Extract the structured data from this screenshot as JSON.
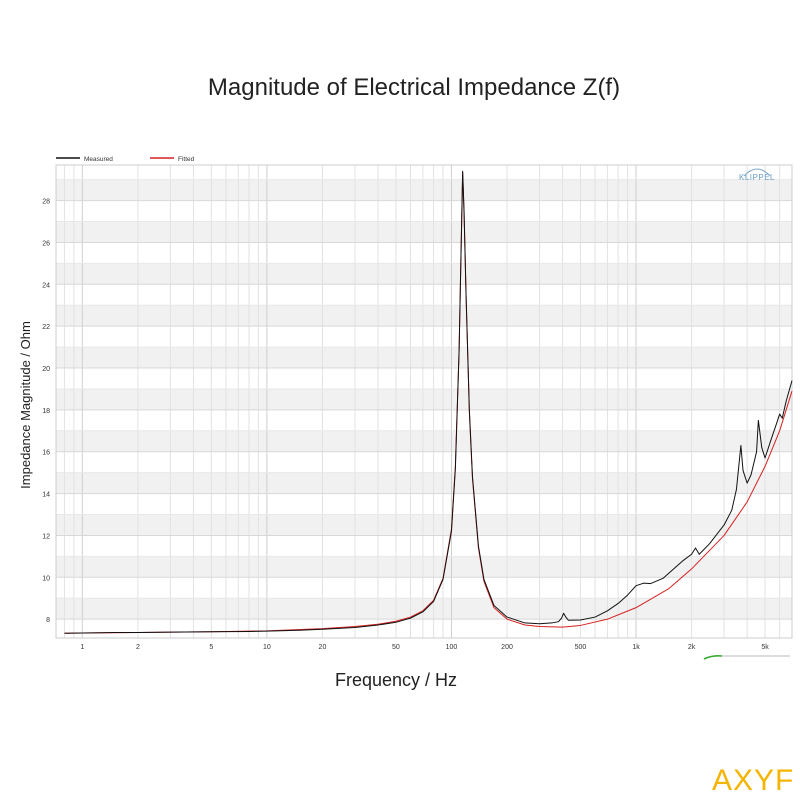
{
  "chart_data": {
    "type": "line",
    "title": "Magnitude of Electrical Impedance Z(f)",
    "xlabel": "Frequency / Hz",
    "ylabel": "Impedance Magnitude / Ohm",
    "xscale": "log",
    "xlim": [
      0.72,
      7000
    ],
    "ylim": [
      7.1,
      29.7
    ],
    "grid": true,
    "legend_position": "top-left",
    "logo_text": "KLIPPEL",
    "x_ticks": [
      {
        "value": 1,
        "label": "1"
      },
      {
        "value": 2,
        "label": "2"
      },
      {
        "value": 5,
        "label": "5"
      },
      {
        "value": 10,
        "label": "10"
      },
      {
        "value": 20,
        "label": "20"
      },
      {
        "value": 50,
        "label": "50"
      },
      {
        "value": 100,
        "label": "100"
      },
      {
        "value": 200,
        "label": "200"
      },
      {
        "value": 500,
        "label": "500"
      },
      {
        "value": 1000,
        "label": "1k"
      },
      {
        "value": 2000,
        "label": "2k"
      },
      {
        "value": 5000,
        "label": "5k"
      }
    ],
    "y_ticks": [
      {
        "value": 8,
        "label": "8"
      },
      {
        "value": 10,
        "label": "10"
      },
      {
        "value": 12,
        "label": "12"
      },
      {
        "value": 14,
        "label": "14"
      },
      {
        "value": 16,
        "label": "16"
      },
      {
        "value": 18,
        "label": "18"
      },
      {
        "value": 20,
        "label": "20"
      },
      {
        "value": 22,
        "label": "22"
      },
      {
        "value": 24,
        "label": "24"
      },
      {
        "value": 26,
        "label": "26"
      },
      {
        "value": 28,
        "label": "28"
      }
    ],
    "series": [
      {
        "name": "Measured",
        "color": "#111111",
        "points": [
          [
            0.8,
            7.33
          ],
          [
            1,
            7.34
          ],
          [
            1.5,
            7.36
          ],
          [
            2,
            7.36
          ],
          [
            3,
            7.38
          ],
          [
            5,
            7.4
          ],
          [
            8,
            7.41
          ],
          [
            10,
            7.43
          ],
          [
            15,
            7.47
          ],
          [
            20,
            7.52
          ],
          [
            30,
            7.6
          ],
          [
            40,
            7.72
          ],
          [
            50,
            7.85
          ],
          [
            60,
            8.05
          ],
          [
            70,
            8.35
          ],
          [
            80,
            8.85
          ],
          [
            90,
            9.9
          ],
          [
            100,
            12.2
          ],
          [
            105,
            15.2
          ],
          [
            110,
            20.8
          ],
          [
            113,
            26.0
          ],
          [
            115,
            29.4
          ],
          [
            117,
            27.5
          ],
          [
            120,
            23.5
          ],
          [
            125,
            18.0
          ],
          [
            130,
            14.8
          ],
          [
            140,
            11.5
          ],
          [
            150,
            9.9
          ],
          [
            170,
            8.65
          ],
          [
            200,
            8.1
          ],
          [
            250,
            7.82
          ],
          [
            300,
            7.78
          ],
          [
            350,
            7.82
          ],
          [
            380,
            7.88
          ],
          [
            395,
            8.05
          ],
          [
            405,
            8.28
          ],
          [
            415,
            8.12
          ],
          [
            430,
            7.95
          ],
          [
            500,
            7.96
          ],
          [
            600,
            8.1
          ],
          [
            700,
            8.4
          ],
          [
            800,
            8.75
          ],
          [
            900,
            9.15
          ],
          [
            1000,
            9.6
          ],
          [
            1100,
            9.72
          ],
          [
            1200,
            9.7
          ],
          [
            1400,
            9.95
          ],
          [
            1600,
            10.4
          ],
          [
            1800,
            10.8
          ],
          [
            2000,
            11.1
          ],
          [
            2100,
            11.4
          ],
          [
            2200,
            11.1
          ],
          [
            2500,
            11.6
          ],
          [
            3000,
            12.5
          ],
          [
            3300,
            13.2
          ],
          [
            3500,
            14.2
          ],
          [
            3700,
            16.3
          ],
          [
            3800,
            15.1
          ],
          [
            4000,
            14.5
          ],
          [
            4200,
            14.9
          ],
          [
            4500,
            16.0
          ],
          [
            4600,
            17.5
          ],
          [
            4800,
            16.2
          ],
          [
            5000,
            15.7
          ],
          [
            5400,
            16.6
          ],
          [
            5800,
            17.4
          ],
          [
            6000,
            17.8
          ],
          [
            6200,
            17.6
          ],
          [
            6500,
            18.4
          ],
          [
            7000,
            19.4
          ]
        ]
      },
      {
        "name": "Fitted",
        "color": "#d62020",
        "points": [
          [
            0.8,
            7.33
          ],
          [
            1,
            7.34
          ],
          [
            2,
            7.36
          ],
          [
            5,
            7.4
          ],
          [
            10,
            7.44
          ],
          [
            20,
            7.55
          ],
          [
            30,
            7.65
          ],
          [
            40,
            7.76
          ],
          [
            50,
            7.9
          ],
          [
            60,
            8.1
          ],
          [
            70,
            8.4
          ],
          [
            80,
            8.9
          ],
          [
            90,
            9.95
          ],
          [
            100,
            12.3
          ],
          [
            105,
            15.3
          ],
          [
            110,
            20.9
          ],
          [
            113,
            26.1
          ],
          [
            115,
            29.35
          ],
          [
            117,
            27.4
          ],
          [
            120,
            23.4
          ],
          [
            125,
            17.9
          ],
          [
            130,
            14.7
          ],
          [
            140,
            11.4
          ],
          [
            150,
            9.8
          ],
          [
            170,
            8.55
          ],
          [
            200,
            8.0
          ],
          [
            250,
            7.72
          ],
          [
            300,
            7.65
          ],
          [
            400,
            7.62
          ],
          [
            500,
            7.7
          ],
          [
            700,
            8.0
          ],
          [
            1000,
            8.55
          ],
          [
            1500,
            9.45
          ],
          [
            2000,
            10.4
          ],
          [
            3000,
            12.0
          ],
          [
            4000,
            13.6
          ],
          [
            5000,
            15.3
          ],
          [
            6000,
            17.0
          ],
          [
            7000,
            18.9
          ]
        ]
      }
    ]
  }
}
